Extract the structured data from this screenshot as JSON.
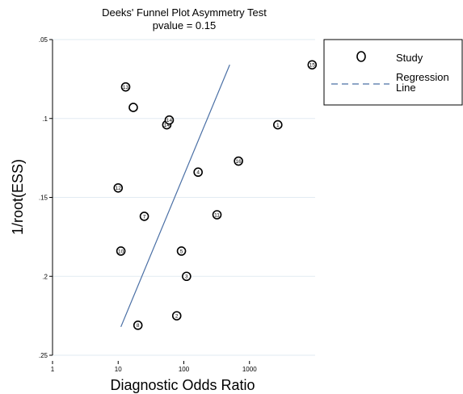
{
  "chart_data": {
    "type": "scatter",
    "title": "Deeks' Funnel Plot Asymmetry Test",
    "subtitle": "pvalue  =   0.15",
    "xlabel": "Diagnostic Odds Ratio",
    "ylabel": "1/root(ESS)",
    "x_scale": "log",
    "xlim": [
      1,
      10000
    ],
    "ylim": [
      0.05,
      0.25
    ],
    "y_inverted": true,
    "x_ticks": [
      1,
      10,
      100,
      1000
    ],
    "x_tick_labels": [
      "1",
      "10",
      "100",
      "1000"
    ],
    "y_ticks": [
      0.05,
      0.1,
      0.15,
      0.2,
      0.25
    ],
    "y_tick_labels": [
      ".05",
      ".1",
      ".15",
      ".2",
      ".25"
    ],
    "grid": "horizontal",
    "legend": {
      "placement": "right",
      "entries": [
        {
          "symbol": "O",
          "label": "Study"
        },
        {
          "symbol": "dashed-line",
          "label": "Regression\nLine"
        }
      ]
    },
    "colors": {
      "regression_line": "#4a6fa5",
      "grid": "#e2ebf2",
      "points": "#000000"
    },
    "series": [
      {
        "name": "Study",
        "points": [
          {
            "label": "1",
            "x": 2700,
            "y": 0.104
          },
          {
            "label": "2",
            "x": 78,
            "y": 0.225
          },
          {
            "label": "3",
            "x": 110,
            "y": 0.2
          },
          {
            "label": "4",
            "x": 165,
            "y": 0.134
          },
          {
            "label": "5",
            "x": 92,
            "y": 0.184
          },
          {
            "label": "7",
            "x": 25,
            "y": 0.162
          },
          {
            "label": "8",
            "x": 20,
            "y": 0.231
          },
          {
            "label": "10",
            "x": 11,
            "y": 0.184
          },
          {
            "label": "11",
            "x": 320,
            "y": 0.161
          },
          {
            "label": "12",
            "x": 10,
            "y": 0.144
          },
          {
            "label": "13",
            "x": 13,
            "y": 0.08
          },
          {
            "label": "14",
            "x": 55,
            "y": 0.104
          },
          {
            "label": "14",
            "x": 60,
            "y": 0.101
          },
          {
            "label": "15",
            "x": 9000,
            "y": 0.066
          },
          {
            "label": "16",
            "x": 680,
            "y": 0.127
          },
          {
            "label": "",
            "x": 17,
            "y": 0.093
          }
        ]
      },
      {
        "name": "Regression Line",
        "type": "line",
        "line_style": "dashed",
        "points": [
          {
            "x": 11,
            "y": 0.232
          },
          {
            "x": 500,
            "y": 0.066
          }
        ]
      }
    ]
  }
}
